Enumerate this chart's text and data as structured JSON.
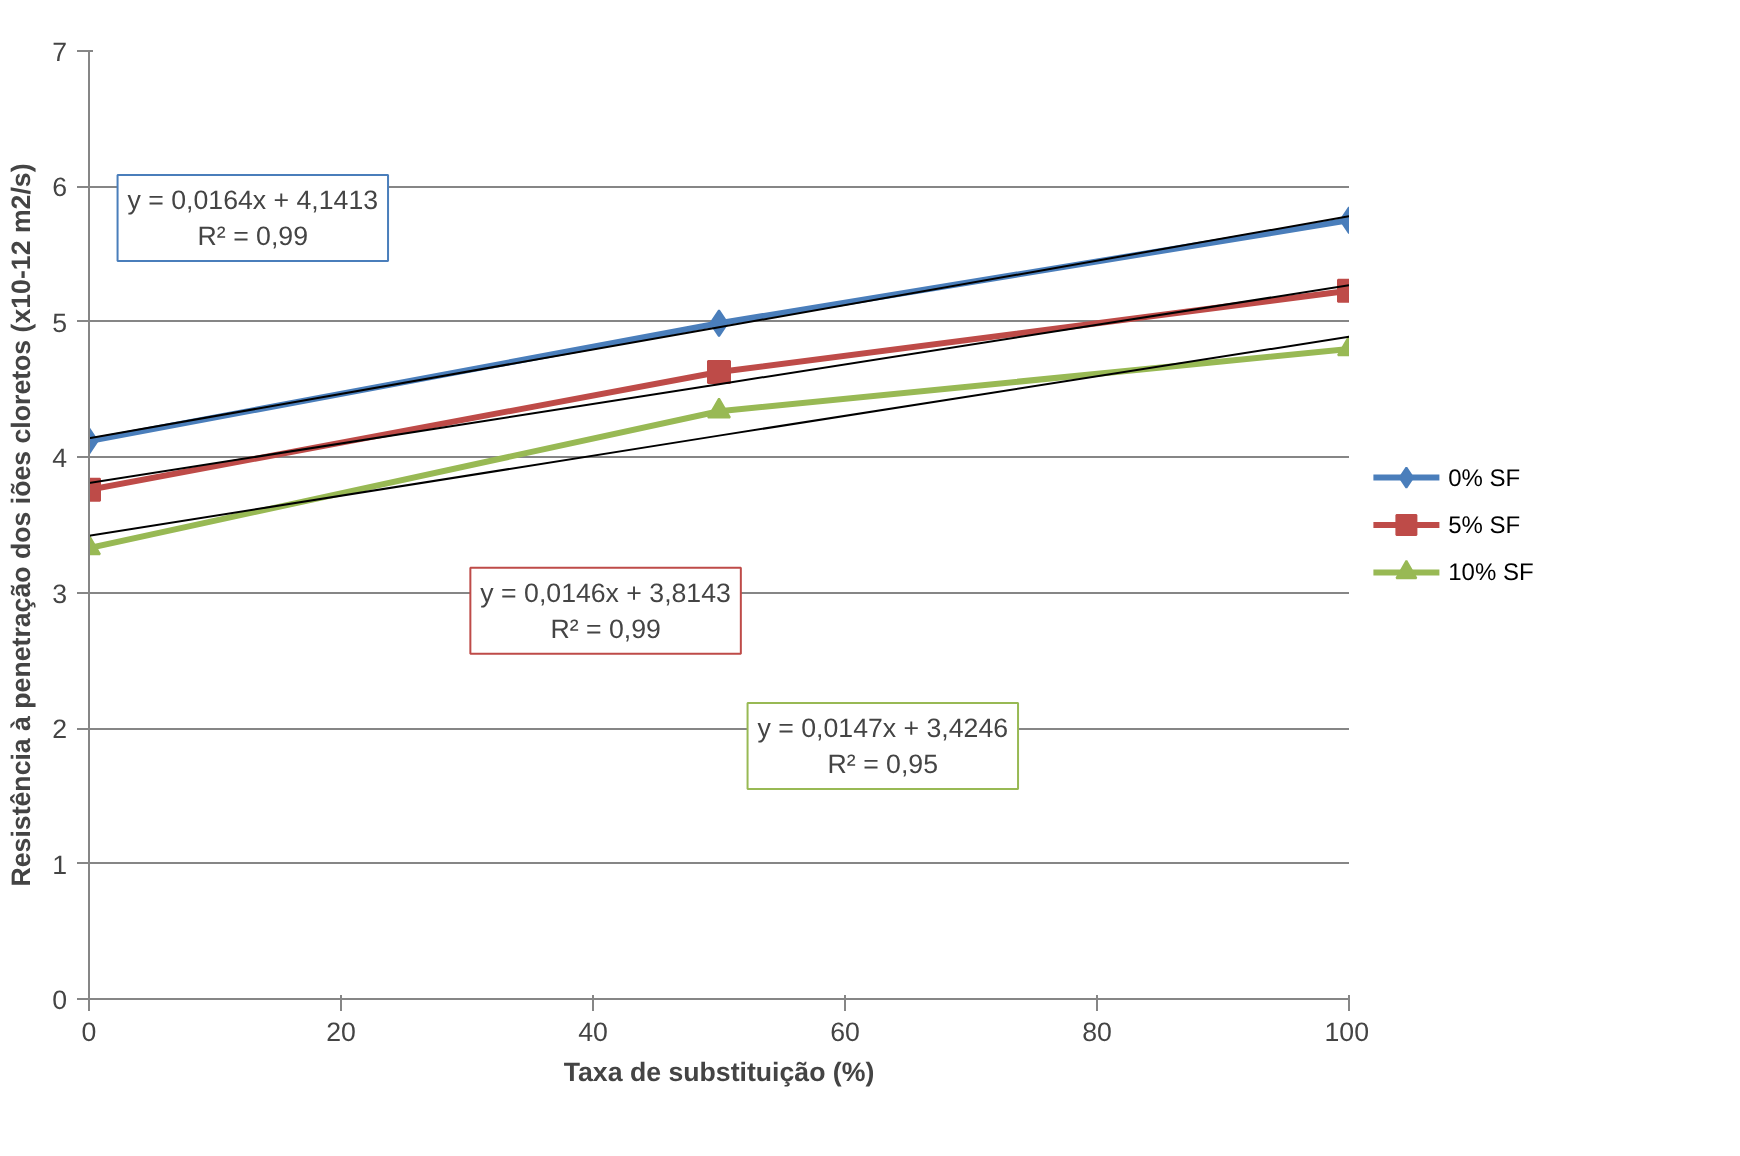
{
  "chart_data": {
    "type": "line",
    "xlabel": "Taxa de substituição (%)",
    "ylabel": "Resistência à penetração dos iões cloretos (x10-12 m2/s)",
    "x": [
      0,
      50,
      100
    ],
    "series": [
      {
        "name": "0% SF",
        "color": "#4a7ebb",
        "values": [
          4.12,
          4.99,
          5.75
        ],
        "marker": "diamond"
      },
      {
        "name": "5% SF",
        "color": "#be4b48",
        "values": [
          3.76,
          4.63,
          5.23
        ],
        "marker": "square"
      },
      {
        "name": "10% SF",
        "color": "#98b954",
        "values": [
          3.33,
          4.34,
          4.8
        ],
        "marker": "triangle"
      },
      {
        "type": "line",
        "color": "#000000",
        "values": [
          4.14,
          4.96,
          5.78
        ],
        "marker": "none"
      },
      {
        "type": "line",
        "color": "#000000",
        "values": [
          3.81,
          4.54,
          5.27
        ],
        "marker": "none"
      },
      {
        "type": "line",
        "color": "#000000",
        "values": [
          3.42,
          4.16,
          4.89
        ],
        "marker": "none"
      }
    ],
    "annotations": [
      "y = 0,0164x + 4,1413\nR² = 0,99",
      "y = 0,0146x + 3,8143\nR² = 0,99",
      "y = 0,0147x + 3,4246\nR² = 0,95"
    ],
    "xlim": [
      0,
      100
    ],
    "xticks": [
      0,
      20,
      40,
      60,
      80,
      100
    ],
    "ylim": [
      0,
      7
    ],
    "yticks": [
      0,
      1,
      2,
      3,
      4,
      5,
      6,
      7
    ],
    "grid": "y",
    "legend": "right",
    "line_style": "solid"
  }
}
